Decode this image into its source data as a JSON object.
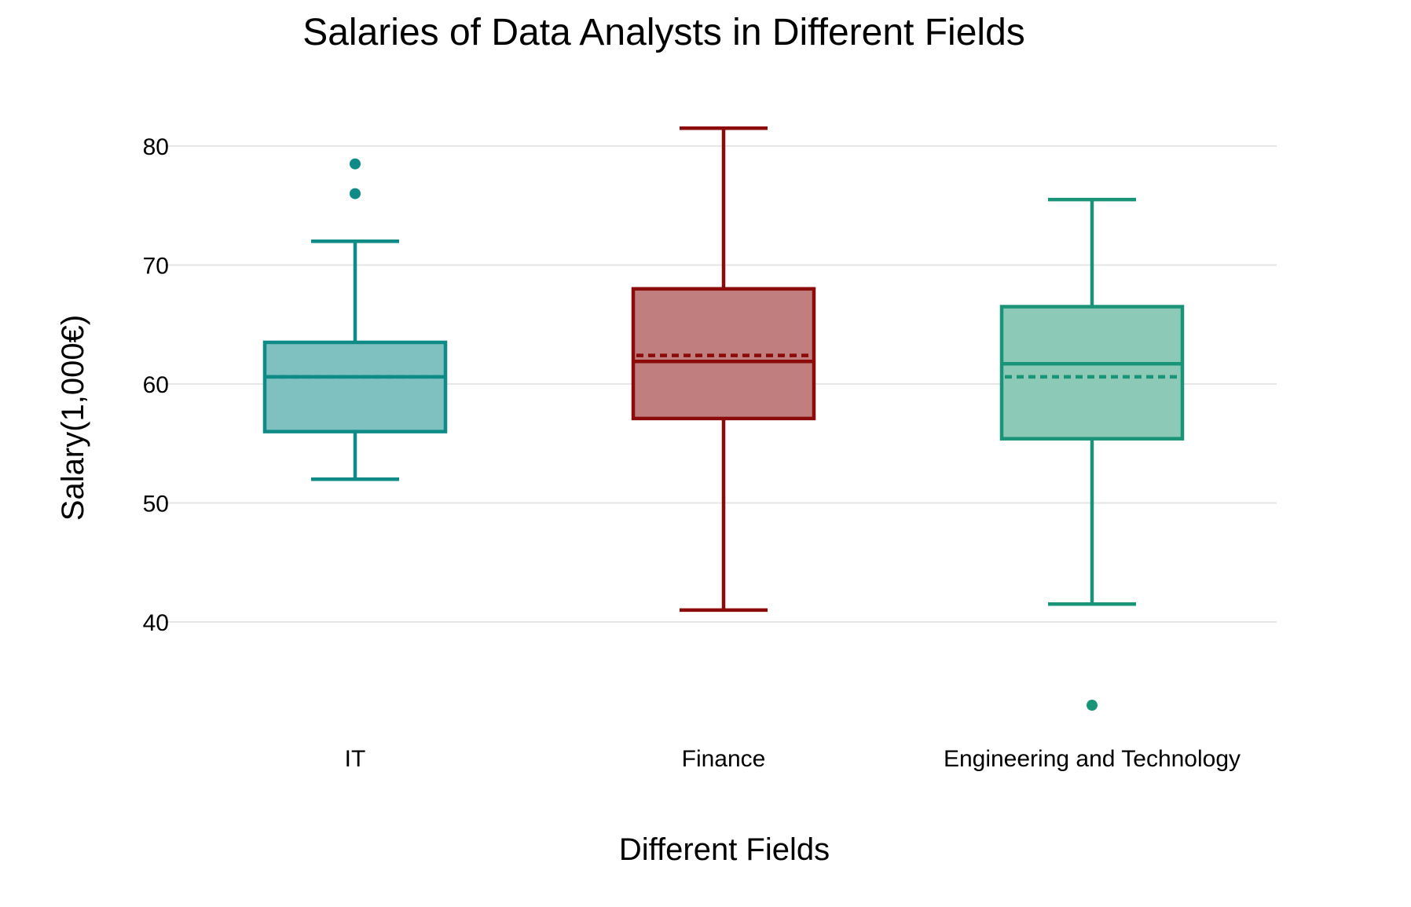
{
  "chart_data": {
    "type": "box",
    "title": "Salaries of Data Analysts in Different Fields",
    "xlabel": "Different Fields",
    "ylabel": "Salary(1,000€)",
    "ylim": [
      30,
      84
    ],
    "yticks": [
      40,
      50,
      60,
      70,
      80
    ],
    "grid": true,
    "legend": "none",
    "categories": [
      "IT",
      "Finance",
      "Engineering and Technology"
    ],
    "series": [
      {
        "category": "IT",
        "color": "#0e8a87",
        "fill": "#7fc1c0",
        "lower_whisker": 52,
        "q1": 56,
        "median": 60.6,
        "mean": 60.6,
        "q3": 63.5,
        "upper_whisker": 72,
        "outliers": [
          76,
          78.5
        ]
      },
      {
        "category": "Finance",
        "color": "#8b0a0a",
        "fill": "#c17e7e",
        "lower_whisker": 41,
        "q1": 57.1,
        "median": 61.9,
        "mean": 62.4,
        "q3": 68,
        "upper_whisker": 81.5,
        "outliers": []
      },
      {
        "category": "Engineering and Technology",
        "color": "#1a9478",
        "fill": "#8cc9b6",
        "lower_whisker": 41.5,
        "q1": 55.4,
        "median": 61.7,
        "mean": 60.6,
        "q3": 66.5,
        "upper_whisker": 75.5,
        "outliers": [
          33
        ]
      }
    ]
  }
}
